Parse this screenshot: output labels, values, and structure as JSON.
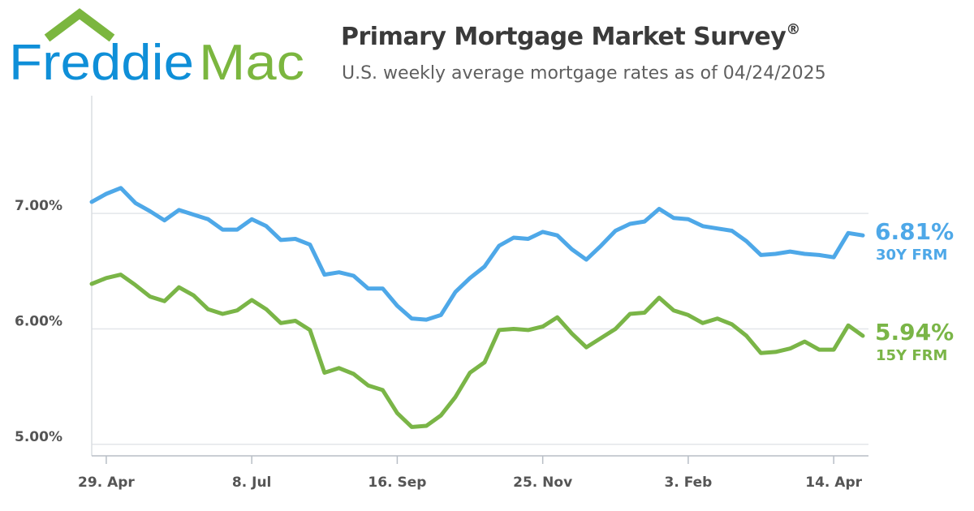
{
  "logo": {
    "word1": "Freddie",
    "word2": "Mac",
    "word1_color": "#0f8fd8",
    "word2_color": "#7bb63f"
  },
  "header": {
    "title": "Primary Mortgage Market Survey",
    "title_mark": "®",
    "subtitle": "U.S. weekly average mortgage rates as of 04/24/2025"
  },
  "chart_data": {
    "type": "line",
    "x_ticks": [
      "29. Apr",
      "8. Jul",
      "16. Sep",
      "25. Nov",
      "3. Feb",
      "14. Apr"
    ],
    "x_tick_index": [
      1,
      11,
      21,
      31,
      41,
      51
    ],
    "y_ticks": [
      "5.00%",
      "6.00%",
      "7.00%"
    ],
    "y_tick_values": [
      5.0,
      6.0,
      7.0
    ],
    "ylim": [
      4.9,
      8.02
    ],
    "weeks": 54,
    "grid": "horizontal",
    "series": [
      {
        "name": "30Y FRM",
        "latest": "6.81%",
        "color": "#4ea8e8",
        "values": [
          7.1,
          7.17,
          7.22,
          7.09,
          7.02,
          6.94,
          7.03,
          6.99,
          6.95,
          6.86,
          6.86,
          6.95,
          6.89,
          6.77,
          6.78,
          6.73,
          6.47,
          6.49,
          6.46,
          6.35,
          6.35,
          6.2,
          6.09,
          6.08,
          6.12,
          6.32,
          6.44,
          6.54,
          6.72,
          6.79,
          6.78,
          6.84,
          6.81,
          6.69,
          6.6,
          6.72,
          6.85,
          6.91,
          6.93,
          7.04,
          6.96,
          6.95,
          6.89,
          6.87,
          6.85,
          6.76,
          6.64,
          6.65,
          6.67,
          6.65,
          6.64,
          6.62,
          6.83,
          6.81
        ]
      },
      {
        "name": "15Y FRM",
        "latest": "5.94%",
        "color": "#7ab547",
        "values": [
          6.39,
          6.44,
          6.47,
          6.38,
          6.28,
          6.24,
          6.36,
          6.29,
          6.17,
          6.13,
          6.16,
          6.25,
          6.17,
          6.05,
          6.07,
          5.99,
          5.62,
          5.66,
          5.61,
          5.51,
          5.47,
          5.27,
          5.15,
          5.16,
          5.25,
          5.41,
          5.62,
          5.71,
          5.99,
          6.0,
          5.99,
          6.02,
          6.1,
          5.96,
          5.84,
          5.92,
          6.0,
          6.13,
          6.14,
          6.27,
          6.16,
          6.12,
          6.05,
          6.09,
          6.04,
          5.94,
          5.79,
          5.8,
          5.83,
          5.89,
          5.82,
          5.82,
          6.03,
          5.94
        ]
      }
    ]
  }
}
